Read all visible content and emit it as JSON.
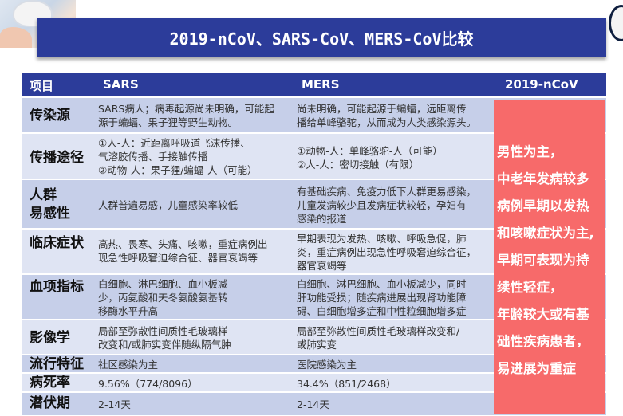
{
  "title": "2019-nCoV、SARS-CoV、MERS-CoV比较",
  "headers": {
    "item": "项目",
    "sars": "SARS",
    "mers": "MERS",
    "ncov": "2019-nCoV"
  },
  "rows": [
    {
      "category": "传染源",
      "sars": [
        "SARS病人；病毒起源尚未明确，可能起",
        "源于蝙蝠、果子狸等野生动物。"
      ],
      "mers": [
        "尚未明确，可能起源于蝙蝠，远距离传",
        "播给单峰骆驼，从而成为人类感染源头。"
      ]
    },
    {
      "category": "传播途径",
      "sars": [
        "①人-人：近距离呼吸道飞沫传播、",
        "气溶胶传播、手接触传播",
        "②动物-人：果子狸/蝙蝠-人（可能）"
      ],
      "mers": [
        "①动物-人：单峰骆驼-人（可能）",
        "②人-人：密切接触（有限）"
      ]
    },
    {
      "category": [
        "人群",
        "易感性"
      ],
      "sars": [
        "人群普遍易感，儿童感染率较低"
      ],
      "mers": [
        "有基础疾病、免疫力低下人群更易感染，",
        "儿童发病较少且发病症状较轻，孕妇有",
        "感染的报道"
      ]
    },
    {
      "category": "临床症状",
      "sars": [
        "高热、畏寒、头痛、咳嗽，重症病例出",
        "现急性呼吸窘迫综合征、器官衰竭等"
      ],
      "mers": [
        "早期表现为发热、咳嗽、呼吸急促，肺",
        "炎，重症病例出现急性呼吸窘迫综合征，",
        "器官衰竭等"
      ]
    },
    {
      "category": "血项指标",
      "sars": [
        "白细胞、淋巴细胞、血小板减",
        "少，丙氨酸和天冬氨酸氨基转",
        "移酶水平升高"
      ],
      "mers": [
        "白细胞、淋巴细胞、血小板减少，同时",
        "肝功能受损；随疾病进展出现肾功能障",
        "碍、白细胞增多症和中性粒细胞增多症"
      ]
    },
    {
      "category": "影像学",
      "sars": [
        "局部至弥散性间质性毛玻璃样",
        "改变和/或肺实变伴随纵隔气肿"
      ],
      "mers": [
        "局部至弥散性间质性毛玻璃样改变和/",
        "或肺实变"
      ]
    },
    {
      "category": "流行特征",
      "sars": [
        "社区感染为主"
      ],
      "mers": [
        "医院感染为主"
      ]
    },
    {
      "category": "病死率",
      "sars": [
        "9.56%（774/8096）"
      ],
      "mers": [
        "34.4%（851/2468）"
      ]
    },
    {
      "category": "潜伏期",
      "sars": [
        "2-14天"
      ],
      "mers": [
        "2-14天"
      ]
    }
  ],
  "ncov_summary": [
    "男性为主，",
    "中老年发病较多",
    "病例早期以发热",
    "和咳嗽症状为主,",
    "早期可表现为持",
    "续性轻症，",
    "年龄较大或有基",
    "础性疾病患者，",
    "易进展为重症"
  ]
}
